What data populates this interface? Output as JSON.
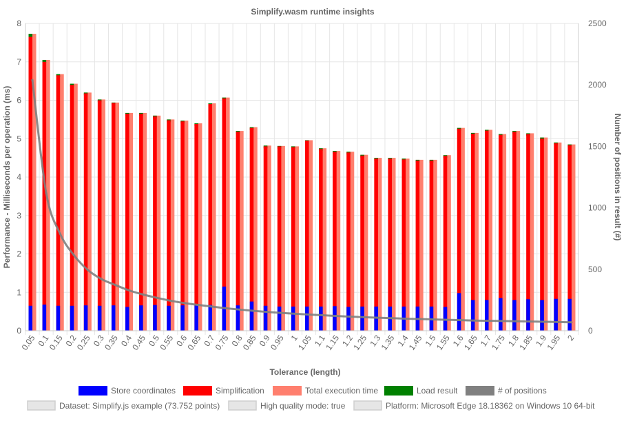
{
  "chart_data": {
    "type": "bar",
    "title": "Simplify.wasm runtime insights",
    "xlabel": "Tolerance (length)",
    "ylabel": "Performance - Milliseconds per operation (ms)",
    "y2label": "Number of positions in result (#)",
    "ylim": [
      0,
      8
    ],
    "y2lim": [
      0,
      2500
    ],
    "yticks": [
      "0",
      "1",
      "2",
      "3",
      "4",
      "5",
      "6",
      "7",
      "8"
    ],
    "y2ticks": [
      "0",
      "500",
      "1000",
      "1500",
      "2000",
      "2500"
    ],
    "grid": true,
    "legend_position": "bottom",
    "categories": [
      "0.05",
      "0.1",
      "0.15",
      "0.2",
      "0.25",
      "0.3",
      "0.35",
      "0.4",
      "0.45",
      "0.5",
      "0.55",
      "0.6",
      "0.65",
      "0.7",
      "0.75",
      "0.8",
      "0.85",
      "0.9",
      "0.95",
      "1",
      "1.05",
      "1.1",
      "1.15",
      "1.2",
      "1.25",
      "1.3",
      "1.35",
      "1.4",
      "1.45",
      "1.5",
      "1.55",
      "1.6",
      "1.65",
      "1.7",
      "1.75",
      "1.8",
      "1.85",
      "1.9",
      "1.95",
      "2"
    ],
    "series": [
      {
        "name": "Store coordinates",
        "color": "#0000ff",
        "values": [
          0.65,
          0.68,
          0.65,
          0.65,
          0.66,
          0.65,
          0.66,
          0.62,
          0.66,
          0.67,
          0.65,
          0.66,
          0.66,
          0.67,
          1.15,
          0.66,
          0.76,
          0.65,
          0.63,
          0.63,
          0.63,
          0.63,
          0.64,
          0.62,
          0.63,
          0.63,
          0.63,
          0.63,
          0.63,
          0.63,
          0.62,
          0.98,
          0.8,
          0.8,
          0.85,
          0.8,
          0.82,
          0.8,
          0.83,
          0.83
        ]
      },
      {
        "name": "Simplification",
        "color": "#ff0000",
        "values": [
          7.65,
          7.0,
          6.65,
          6.4,
          6.18,
          6.0,
          5.93,
          5.65,
          5.65,
          5.58,
          5.48,
          5.45,
          5.38,
          5.9,
          6.05,
          5.18,
          5.28,
          4.8,
          4.8,
          4.78,
          4.95,
          4.73,
          4.66,
          4.64,
          4.56,
          4.48,
          4.48,
          4.46,
          4.43,
          4.43,
          4.55,
          5.26,
          5.13,
          5.21,
          5.1,
          5.18,
          5.12,
          5.0,
          4.88,
          4.83
        ]
      },
      {
        "name": "Total execution time",
        "color": "#ff7f6e",
        "values": [
          7.73,
          7.05,
          6.68,
          6.43,
          6.2,
          6.02,
          5.94,
          5.67,
          5.67,
          5.6,
          5.5,
          5.47,
          5.4,
          5.92,
          6.07,
          5.2,
          5.3,
          4.82,
          4.81,
          4.8,
          4.96,
          4.75,
          4.68,
          4.66,
          4.58,
          4.5,
          4.5,
          4.48,
          4.45,
          4.45,
          4.57,
          5.28,
          5.15,
          5.23,
          5.12,
          5.2,
          5.14,
          5.03,
          4.9,
          4.85
        ]
      },
      {
        "name": "Load result",
        "color": "#008000",
        "values": [
          7.73,
          7.05,
          6.68,
          6.43,
          6.2,
          6.02,
          5.94,
          5.67,
          5.67,
          5.6,
          5.5,
          5.47,
          5.4,
          5.92,
          6.07,
          5.2,
          5.3,
          4.82,
          4.81,
          4.8,
          4.96,
          4.75,
          4.68,
          4.66,
          4.58,
          4.5,
          4.5,
          4.48,
          4.45,
          4.45,
          4.57,
          5.28,
          5.15,
          5.23,
          5.12,
          5.2,
          5.14,
          5.03,
          4.9,
          4.85
        ]
      },
      {
        "name": "# of positions",
        "color": "#808080",
        "type": "line",
        "axis": "right",
        "values": [
          2040,
          1120,
          790,
          615,
          495,
          420,
          372,
          328,
          295,
          268,
          244,
          225,
          210,
          196,
          183,
          172,
          162,
          153,
          145,
          138,
          132,
          126,
          120,
          115,
          110,
          106,
          102,
          98,
          95,
          92,
          89,
          86,
          83,
          81,
          79,
          77,
          75,
          73,
          71,
          69
        ]
      }
    ]
  },
  "legend": {
    "items": [
      {
        "label": "Store coordinates",
        "color": "#0000ff"
      },
      {
        "label": "Simplification",
        "color": "#ff0000"
      },
      {
        "label": "Total execution time",
        "color": "#ff7f6e"
      },
      {
        "label": "Load result",
        "color": "#008000"
      },
      {
        "label": "# of positions",
        "color": "#808080"
      }
    ],
    "info": [
      {
        "label": "Dataset: Simplify.js example (73.752 points)"
      },
      {
        "label": "High quality mode: true"
      },
      {
        "label": "Platform: Microsoft Edge 18.18362 on Windows 10 64-bit"
      }
    ]
  }
}
